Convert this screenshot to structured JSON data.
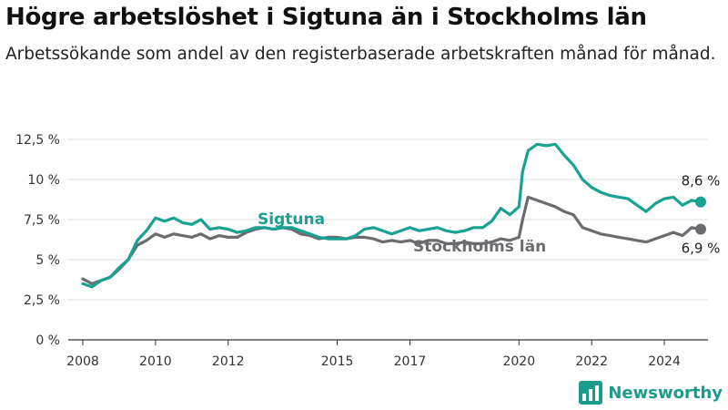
{
  "title": "Högre arbetslöshet i Sigtuna än i Stockholms län",
  "subtitle": "Arbetssökande som andel av den registerbaserade arbetskraften månad för månad.",
  "brand": {
    "name": "Newsworthy",
    "icon": "bar-chart-logo-icon",
    "color": "#1a9b8b"
  },
  "chart_data": {
    "type": "line",
    "x_ticks": [
      2008,
      2010,
      2012,
      2015,
      2017,
      2020,
      2022,
      2024
    ],
    "y_ticks": [
      0,
      2.5,
      5,
      7.5,
      10,
      12.5
    ],
    "y_tick_labels": [
      "0 %",
      "2,5 %",
      "5 %",
      "7,5 %",
      "10 %",
      "12,5 %"
    ],
    "ylim": [
      0,
      12.5
    ],
    "xlim": [
      2007.6,
      2025.2
    ],
    "grid": true,
    "series": [
      {
        "name": "Sigtuna",
        "color": "#17a293",
        "end_label": "8,6 %",
        "points": [
          [
            2008.0,
            3.5
          ],
          [
            2008.25,
            3.3
          ],
          [
            2008.5,
            3.7
          ],
          [
            2008.75,
            3.9
          ],
          [
            2009.0,
            4.5
          ],
          [
            2009.25,
            5.0
          ],
          [
            2009.5,
            6.2
          ],
          [
            2009.75,
            6.8
          ],
          [
            2010.0,
            7.6
          ],
          [
            2010.25,
            7.4
          ],
          [
            2010.5,
            7.6
          ],
          [
            2010.75,
            7.3
          ],
          [
            2011.0,
            7.2
          ],
          [
            2011.25,
            7.5
          ],
          [
            2011.5,
            6.9
          ],
          [
            2011.75,
            7.0
          ],
          [
            2012.0,
            6.9
          ],
          [
            2012.25,
            6.7
          ],
          [
            2012.5,
            6.8
          ],
          [
            2012.75,
            7.0
          ],
          [
            2013.0,
            7.0
          ],
          [
            2013.25,
            6.9
          ],
          [
            2013.5,
            7.0
          ],
          [
            2013.75,
            7.0
          ],
          [
            2014.0,
            6.8
          ],
          [
            2014.25,
            6.6
          ],
          [
            2014.5,
            6.4
          ],
          [
            2014.75,
            6.3
          ],
          [
            2015.0,
            6.3
          ],
          [
            2015.25,
            6.3
          ],
          [
            2015.5,
            6.5
          ],
          [
            2015.75,
            6.9
          ],
          [
            2016.0,
            7.0
          ],
          [
            2016.25,
            6.8
          ],
          [
            2016.5,
            6.6
          ],
          [
            2016.75,
            6.8
          ],
          [
            2017.0,
            7.0
          ],
          [
            2017.25,
            6.8
          ],
          [
            2017.5,
            6.9
          ],
          [
            2017.75,
            7.0
          ],
          [
            2018.0,
            6.8
          ],
          [
            2018.25,
            6.7
          ],
          [
            2018.5,
            6.8
          ],
          [
            2018.75,
            7.0
          ],
          [
            2019.0,
            7.0
          ],
          [
            2019.25,
            7.4
          ],
          [
            2019.5,
            8.2
          ],
          [
            2019.75,
            7.8
          ],
          [
            2020.0,
            8.3
          ],
          [
            2020.1,
            10.5
          ],
          [
            2020.25,
            11.8
          ],
          [
            2020.5,
            12.2
          ],
          [
            2020.75,
            12.1
          ],
          [
            2021.0,
            12.2
          ],
          [
            2021.25,
            11.5
          ],
          [
            2021.5,
            10.9
          ],
          [
            2021.75,
            10.0
          ],
          [
            2022.0,
            9.5
          ],
          [
            2022.25,
            9.2
          ],
          [
            2022.5,
            9.0
          ],
          [
            2022.75,
            8.9
          ],
          [
            2023.0,
            8.8
          ],
          [
            2023.25,
            8.4
          ],
          [
            2023.5,
            8.0
          ],
          [
            2023.75,
            8.5
          ],
          [
            2024.0,
            8.8
          ],
          [
            2024.25,
            8.9
          ],
          [
            2024.5,
            8.4
          ],
          [
            2024.75,
            8.7
          ],
          [
            2025.0,
            8.6
          ]
        ]
      },
      {
        "name": "Stockholms län",
        "color": "#6b6b70",
        "end_label": "6,9 %",
        "points": [
          [
            2008.0,
            3.8
          ],
          [
            2008.25,
            3.5
          ],
          [
            2008.5,
            3.7
          ],
          [
            2008.75,
            3.9
          ],
          [
            2009.0,
            4.4
          ],
          [
            2009.25,
            5.0
          ],
          [
            2009.5,
            5.9
          ],
          [
            2009.75,
            6.2
          ],
          [
            2010.0,
            6.6
          ],
          [
            2010.25,
            6.4
          ],
          [
            2010.5,
            6.6
          ],
          [
            2010.75,
            6.5
          ],
          [
            2011.0,
            6.4
          ],
          [
            2011.25,
            6.6
          ],
          [
            2011.5,
            6.3
          ],
          [
            2011.75,
            6.5
          ],
          [
            2012.0,
            6.4
          ],
          [
            2012.25,
            6.4
          ],
          [
            2012.5,
            6.7
          ],
          [
            2012.75,
            6.9
          ],
          [
            2013.0,
            7.0
          ],
          [
            2013.25,
            6.9
          ],
          [
            2013.5,
            7.0
          ],
          [
            2013.75,
            6.9
          ],
          [
            2014.0,
            6.6
          ],
          [
            2014.25,
            6.5
          ],
          [
            2014.5,
            6.3
          ],
          [
            2014.75,
            6.4
          ],
          [
            2015.0,
            6.4
          ],
          [
            2015.25,
            6.3
          ],
          [
            2015.5,
            6.4
          ],
          [
            2015.75,
            6.4
          ],
          [
            2016.0,
            6.3
          ],
          [
            2016.25,
            6.1
          ],
          [
            2016.5,
            6.2
          ],
          [
            2016.75,
            6.1
          ],
          [
            2017.0,
            6.2
          ],
          [
            2017.25,
            6.0
          ],
          [
            2017.5,
            6.2
          ],
          [
            2017.75,
            6.2
          ],
          [
            2018.0,
            6.0
          ],
          [
            2018.25,
            6.0
          ],
          [
            2018.5,
            6.1
          ],
          [
            2018.75,
            6.0
          ],
          [
            2019.0,
            6.0
          ],
          [
            2019.25,
            6.1
          ],
          [
            2019.5,
            6.3
          ],
          [
            2019.75,
            6.2
          ],
          [
            2020.0,
            6.4
          ],
          [
            2020.1,
            7.5
          ],
          [
            2020.25,
            8.9
          ],
          [
            2020.5,
            8.7
          ],
          [
            2020.75,
            8.5
          ],
          [
            2021.0,
            8.3
          ],
          [
            2021.25,
            8.0
          ],
          [
            2021.5,
            7.8
          ],
          [
            2021.75,
            7.0
          ],
          [
            2022.0,
            6.8
          ],
          [
            2022.25,
            6.6
          ],
          [
            2022.5,
            6.5
          ],
          [
            2022.75,
            6.4
          ],
          [
            2023.0,
            6.3
          ],
          [
            2023.25,
            6.2
          ],
          [
            2023.5,
            6.1
          ],
          [
            2023.75,
            6.3
          ],
          [
            2024.0,
            6.5
          ],
          [
            2024.25,
            6.7
          ],
          [
            2024.5,
            6.5
          ],
          [
            2024.75,
            7.0
          ],
          [
            2025.0,
            6.9
          ]
        ]
      }
    ]
  }
}
